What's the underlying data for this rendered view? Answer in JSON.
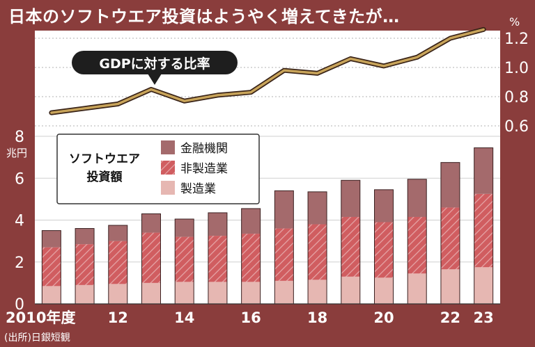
{
  "title": "日本のソフトウエア投資はようやく増えてきたが…",
  "source": "(出所)日銀短観",
  "colors": {
    "background": "#8a3d3c",
    "plot_bg": "#ffffff",
    "gdp_line": "#c8a45a",
    "finance": "#a46a6c",
    "nonmanufacturing": "#d05d60",
    "manufacturing": "#e6b7b2"
  },
  "chart_data": [
    {
      "type": "bar",
      "stacked": true,
      "title": "ソフトウエア投資額",
      "ylabel": "兆円",
      "ylim": [
        0,
        8
      ],
      "yticks": [
        0,
        2,
        4,
        6,
        8
      ],
      "categories": [
        "2010",
        "2011",
        "2012",
        "2013",
        "2014",
        "2015",
        "2016",
        "2017",
        "2018",
        "2019",
        "2020",
        "2021",
        "2022",
        "2023"
      ],
      "tick_labels": [
        "2010年度",
        "",
        "12",
        "",
        "14",
        "",
        "16",
        "",
        "18",
        "",
        "20",
        "",
        "22",
        "23"
      ],
      "series": [
        {
          "name": "製造業",
          "values": [
            0.85,
            0.9,
            0.95,
            1.0,
            1.05,
            1.05,
            1.05,
            1.1,
            1.15,
            1.3,
            1.25,
            1.45,
            1.65,
            1.75
          ]
        },
        {
          "name": "非製造業",
          "values": [
            1.85,
            1.95,
            2.05,
            2.4,
            2.15,
            2.2,
            2.3,
            2.5,
            2.65,
            2.85,
            2.65,
            2.7,
            2.95,
            3.5
          ]
        },
        {
          "name": "金融機関",
          "values": [
            0.8,
            0.75,
            0.75,
            0.9,
            0.85,
            1.1,
            1.2,
            1.8,
            1.55,
            1.75,
            1.55,
            1.8,
            2.15,
            2.2
          ]
        }
      ],
      "legend": {
        "title": "ソフトウエア投資額",
        "items": [
          "金融機関",
          "非製造業",
          "製造業"
        ],
        "placement": "top-left"
      }
    },
    {
      "type": "line",
      "title": "GDPに対する比率",
      "unit": "%",
      "ylim": [
        0.6,
        1.3
      ],
      "yticks": [
        0.6,
        0.8,
        1.0,
        1.2
      ],
      "ytick_labels": [
        "0.6",
        "0.8",
        "1.0",
        "1.2"
      ],
      "x": [
        "2010",
        "2011",
        "2012",
        "2013",
        "2014",
        "2015",
        "2016",
        "2017",
        "2018",
        "2019",
        "2020",
        "2021",
        "2022",
        "2023"
      ],
      "values": [
        0.69,
        0.72,
        0.75,
        0.85,
        0.77,
        0.81,
        0.83,
        0.98,
        0.96,
        1.06,
        1.01,
        1.07,
        1.2,
        1.26
      ]
    }
  ]
}
